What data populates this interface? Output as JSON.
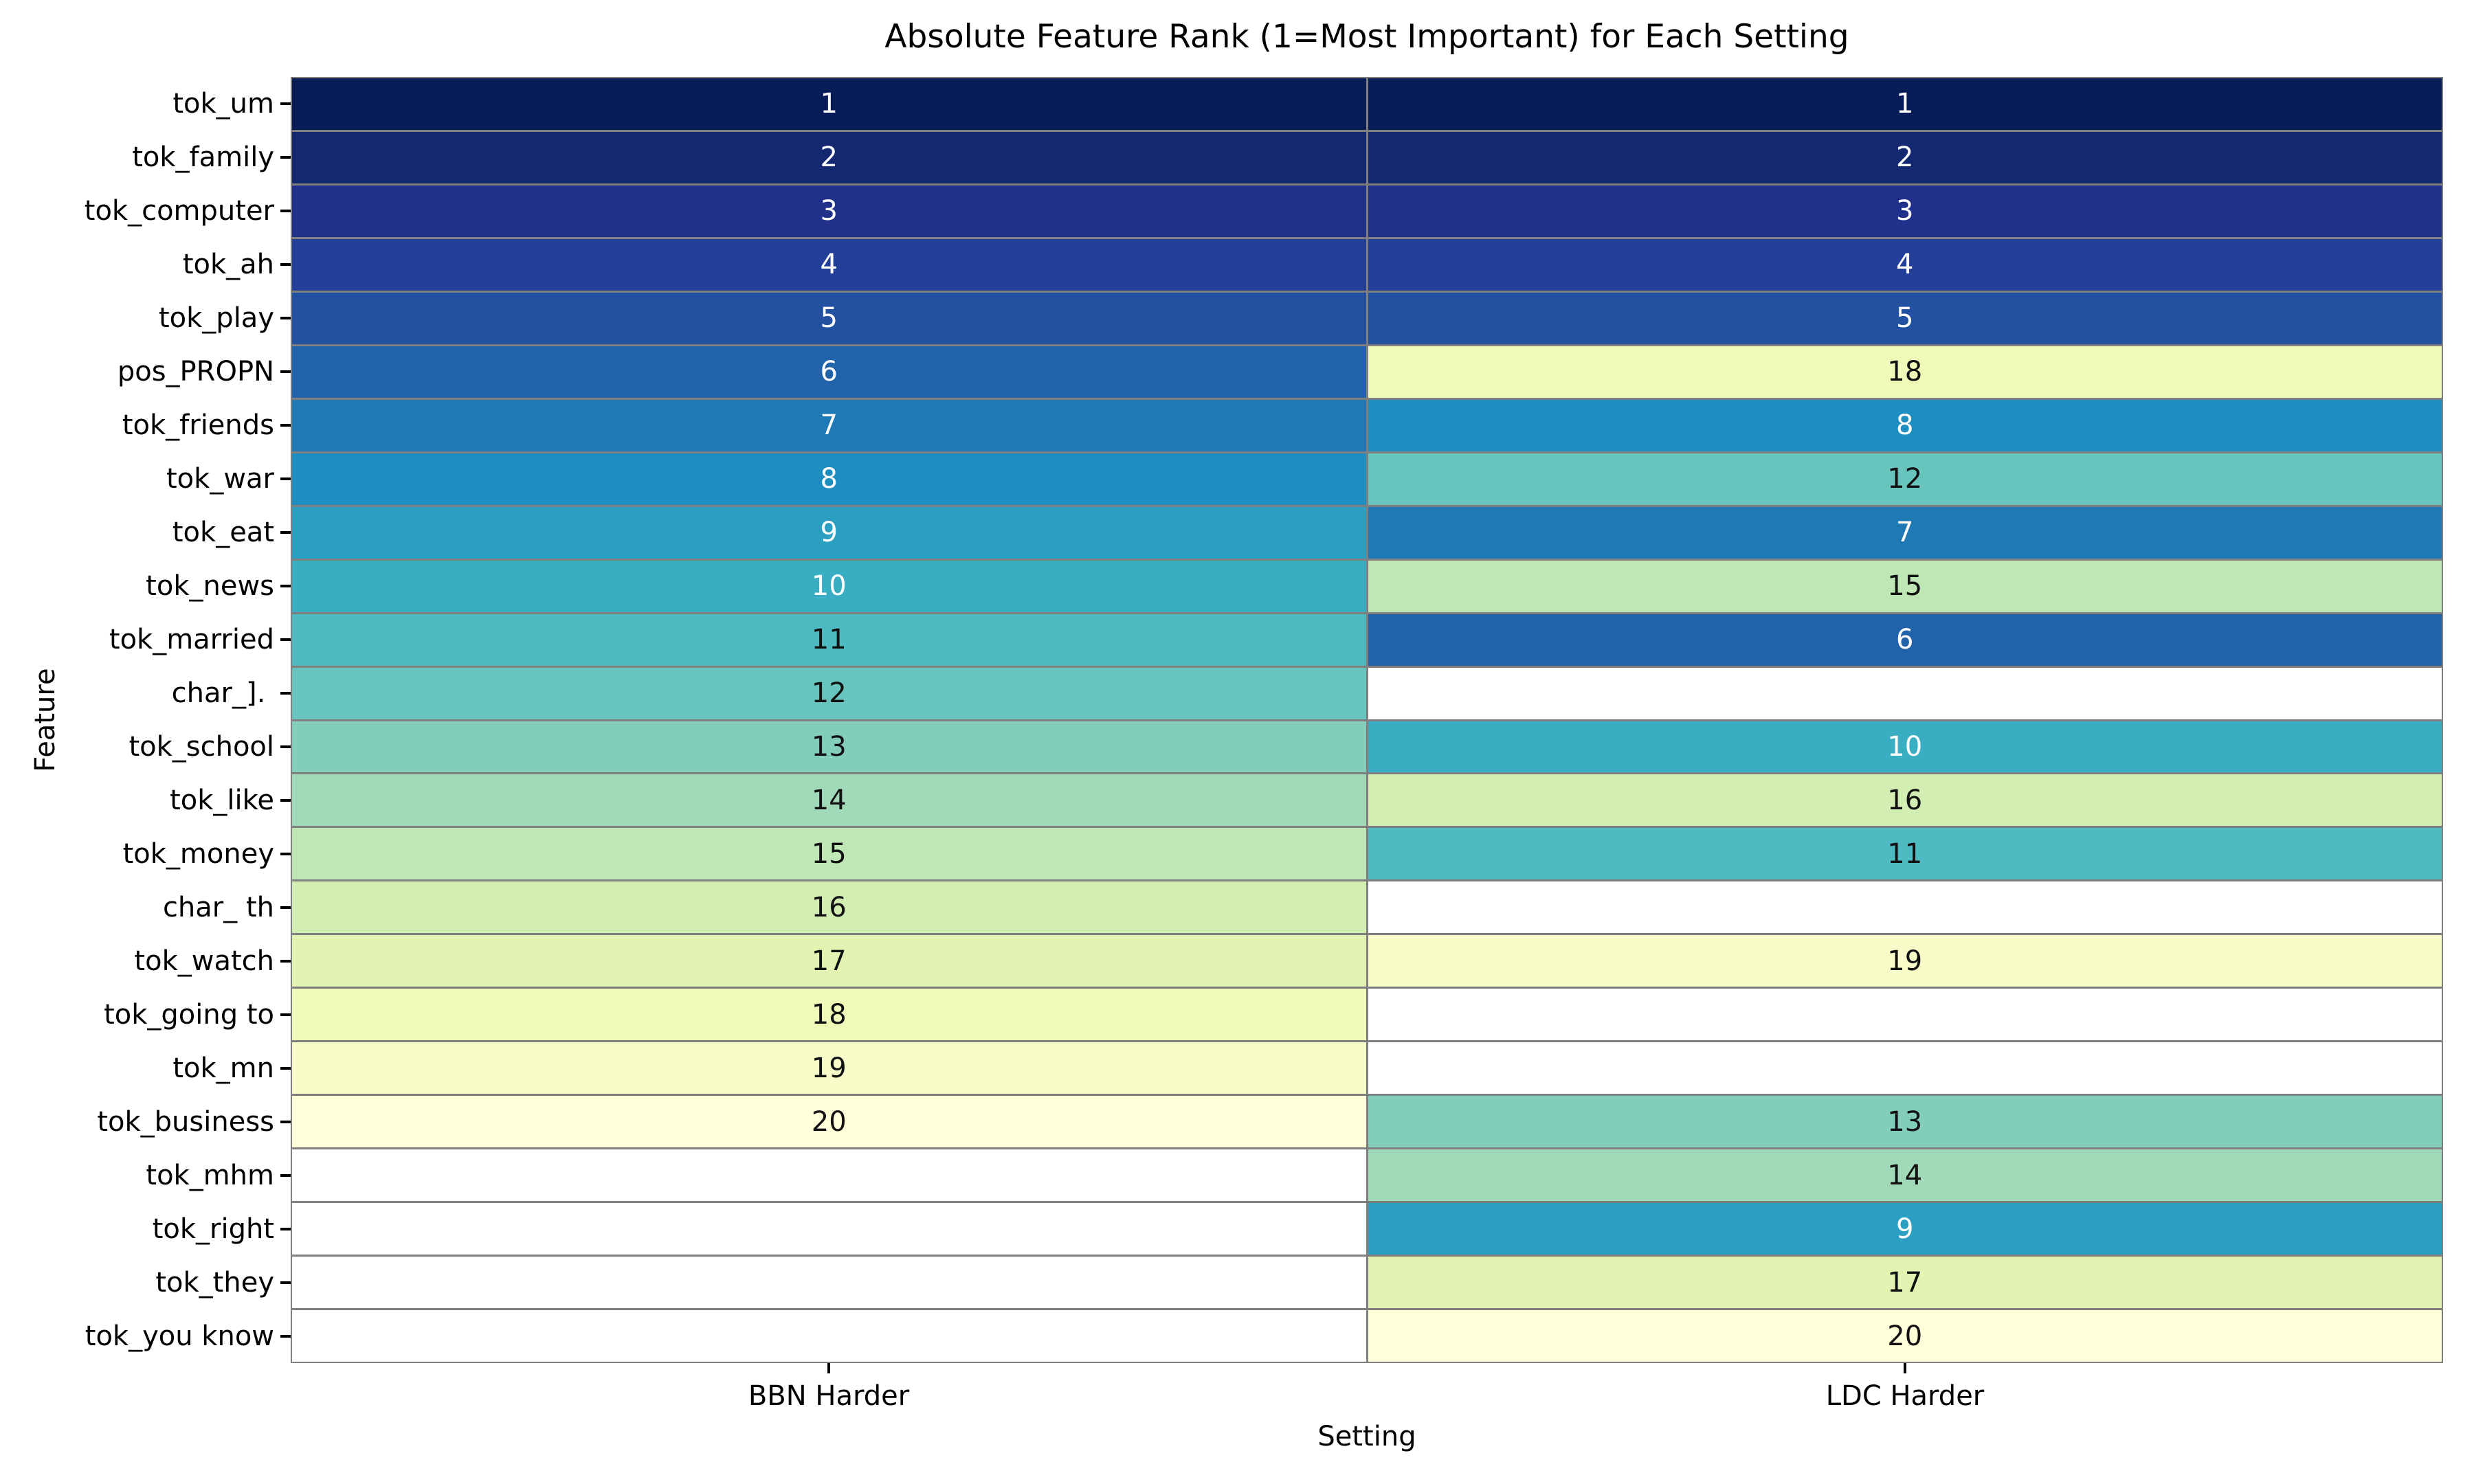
{
  "figure": {
    "title": "Absolute Feature Rank (1=Most Important) for Each Setting",
    "xlabel": "Setting",
    "ylabel": "Feature"
  },
  "chart_data": {
    "type": "heatmap",
    "title": "Absolute Feature Rank (1=Most Important) for Each Setting",
    "xlabel": "Setting",
    "ylabel": "Feature",
    "legend": "none",
    "columns": [
      "BBN Harder",
      "LDC Harder"
    ],
    "rows": [
      "tok_um",
      "tok_family",
      "tok_computer",
      "tok_ah",
      "tok_play",
      "pos_PROPN",
      "tok_friends",
      "tok_war",
      "tok_eat",
      "tok_news",
      "tok_married",
      "char_]. ",
      "tok_school",
      "tok_like",
      "tok_money",
      "char_ th",
      "tok_watch",
      "tok_going to",
      "tok_mn",
      "tok_business",
      "tok_mhm",
      "tok_right",
      "tok_they",
      "tok_you know"
    ],
    "series": [
      {
        "name": "BBN Harder",
        "values": [
          1,
          2,
          3,
          4,
          5,
          6,
          7,
          8,
          9,
          10,
          11,
          12,
          13,
          14,
          15,
          16,
          17,
          18,
          19,
          20,
          null,
          null,
          null,
          null
        ]
      },
      {
        "name": "LDC Harder",
        "values": [
          1,
          2,
          3,
          4,
          5,
          18,
          8,
          12,
          7,
          15,
          6,
          null,
          10,
          16,
          11,
          null,
          19,
          null,
          null,
          13,
          14,
          9,
          17,
          20
        ]
      }
    ],
    "value_range": [
      1,
      20
    ],
    "colors": {
      "ranks": {
        "1": "#081d58",
        "2": "#142771",
        "3": "#20308b",
        "4": "#243f99",
        "5": "#2351a2",
        "6": "#2163ab",
        "7": "#1f79b5",
        "8": "#1d8ebf",
        "9": "#2a9fc1",
        "10": "#39aec3",
        "11": "#4ebbc2",
        "12": "#68c5be",
        "13": "#83cebb",
        "14": "#a1dab8",
        "15": "#bfe6b5",
        "16": "#d3eeb3",
        "17": "#e3f4b2",
        "18": "#f0f9b7",
        "19": "#f7fcc8",
        "20": "#ffffd9"
      },
      "missing": "#ffffff",
      "grid": "#7f7f7f",
      "annotation_light": "#ffffff",
      "annotation_dark": "#111111",
      "white_text_max_rank": 10
    }
  }
}
